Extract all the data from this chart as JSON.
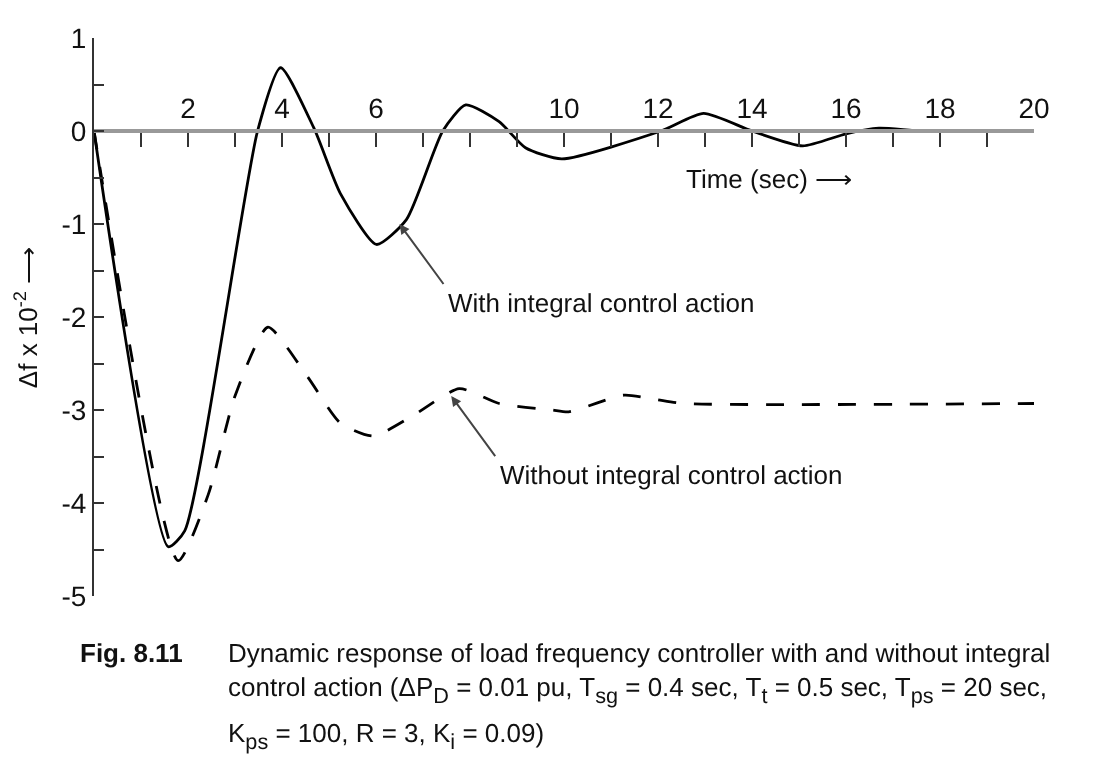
{
  "chart_data": {
    "type": "line",
    "xlabel": "Time (sec) ⟶",
    "ylabel": "Δf x 10$^{-2}$ ⟶",
    "xlim": [
      0,
      20
    ],
    "ylim": [
      -5,
      1
    ],
    "xticks": [
      {
        "value": 1,
        "label": null
      },
      2,
      {
        "value": 3,
        "label": null
      },
      4,
      {
        "value": 5,
        "label": null
      },
      6,
      {
        "value": 7,
        "label": null
      },
      {
        "value": 8,
        "label": null
      },
      {
        "value": 9,
        "label": null
      },
      10,
      {
        "value": 11,
        "label": null
      },
      12,
      {
        "value": 13,
        "label": null
      },
      14,
      {
        "value": 15,
        "label": null
      },
      16,
      {
        "value": 17,
        "label": null
      },
      18,
      {
        "value": 19,
        "label": null
      },
      20
    ],
    "yticks": [
      -5,
      {
        "value": -4.5,
        "label": null
      },
      -4,
      {
        "value": -3.5,
        "label": null
      },
      -3,
      {
        "value": -2.5,
        "label": null
      },
      -2,
      {
        "value": -1.5,
        "label": null
      },
      -1,
      {
        "value": -0.5,
        "label": null
      },
      0,
      {
        "value": 0.5,
        "label": null
      },
      1
    ],
    "marker": "none",
    "series": [
      {
        "color": "#000000",
        "line_style": "solid",
        "x": [
          0,
          1.58,
          1.93,
          3.48,
          3.97,
          4.68,
          5.24,
          6.01,
          6.65,
          7.42,
          7.91,
          8.62,
          9.18,
          9.95,
          12.06,
          12.97,
          14.0,
          15.08,
          16.0,
          16.7,
          17.6,
          20
        ],
        "values": [
          0,
          -4.47,
          -4.3,
          0,
          0.68,
          0.03,
          -0.67,
          -1.22,
          -0.95,
          0,
          0.28,
          0.1,
          -0.18,
          -0.3,
          0,
          0.19,
          0,
          -0.16,
          -0.03,
          0.03,
          0,
          0
        ]
      },
      {
        "color": "#000000",
        "line_style": "dashed",
        "x": [
          0,
          1.79,
          2.43,
          3.0,
          3.7,
          4.54,
          5.24,
          5.94,
          6.79,
          7.77,
          8.62,
          9.74,
          10.1,
          11.28,
          11.98,
          12.55,
          20
        ],
        "values": [
          0,
          -4.62,
          -3.91,
          -2.85,
          -2.11,
          -2.64,
          -3.14,
          -3.28,
          -3.06,
          -2.77,
          -2.93,
          -3.0,
          -3.02,
          -2.84,
          -2.89,
          -2.93,
          -2.93
        ]
      }
    ],
    "annotations": [
      {
        "text": "With integral control action",
        "x": 6.5,
        "y": -1.0
      },
      {
        "text": "Without integral control action",
        "x": 7.6,
        "y": -2.85
      },
      "Fig. 8.11",
      "Dynamic response of load frequency controller with and without integral control action (ΔP$_{D}$ = 0.01 pu, T$_{sg}$ = 0.4 sec, T$_{t}$ = 0.5 sec, T$_{ps}$ = 20 sec, K$_{ps}$ = 100, R = 3, K$_{i}$ = 0.09)"
    ]
  }
}
